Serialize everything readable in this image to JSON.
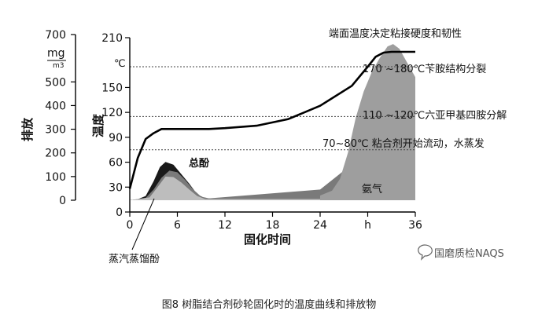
{
  "chart_data": {
    "type": "area",
    "title": "端面温度决定粘接硬度和韧性",
    "caption": "图8 树脂结合剂砂轮固化时的温度曲线和排放物",
    "xlabel": "固化时间",
    "ylabel": "温度",
    "y_unit": "℃",
    "xlim": [
      0,
      36
    ],
    "ylim": [
      0,
      210
    ],
    "x_ticks": [
      {
        "v": 0,
        "label": "0"
      },
      {
        "v": 6,
        "label": "6"
      },
      {
        "v": 12,
        "label": "12"
      },
      {
        "v": 18,
        "label": "18"
      },
      {
        "v": 24,
        "label": "24"
      },
      {
        "v": 30,
        "label": "h"
      },
      {
        "v": 36,
        "label": "36"
      }
    ],
    "y_ticks": [
      0,
      30,
      60,
      90,
      120,
      150,
      210
    ],
    "secondary_axis": {
      "label": "排放",
      "unit_top": "mg",
      "unit_bottom": "m3",
      "ylim": [
        0,
        700
      ],
      "ticks": [
        0,
        100,
        200,
        300,
        400,
        500,
        700
      ]
    },
    "reference_lines": [
      {
        "y": 175,
        "label": "170 ~180℃苄胺结构分裂"
      },
      {
        "y": 115,
        "label": "110 ~120℃六亚甲基四胺分解"
      },
      {
        "y": 75,
        "label": "70~80℃ 粘合剂开始流动，水蒸发"
      }
    ],
    "series": [
      {
        "name": "总酚",
        "role": "emission",
        "color": "#1a1a1a",
        "x": [
          0,
          1,
          2,
          3,
          3.8,
          4.5,
          5.5,
          6.5,
          7.5,
          8.5,
          9.5,
          36
        ],
        "y": [
          0,
          4,
          18,
          80,
          140,
          162,
          150,
          110,
          70,
          25,
          8,
          8
        ]
      },
      {
        "name": "",
        "role": "emission",
        "color": "#7a7a7a",
        "x": [
          0,
          2,
          3,
          4,
          5,
          6,
          7,
          8,
          9,
          10,
          24,
          27,
          29,
          30,
          31,
          32,
          33,
          34,
          35,
          36
        ],
        "y": [
          0,
          10,
          45,
          95,
          125,
          118,
          85,
          45,
          15,
          8,
          45,
          125,
          250,
          340,
          420,
          510,
          540,
          500,
          420,
          320
        ]
      },
      {
        "name": "蒸汽蒸馏酚",
        "role": "emission",
        "color": "#bdbdbd",
        "x": [
          0,
          2.5,
          3.5,
          4.5,
          5.5,
          6.5,
          7.5,
          8.5,
          9.5,
          36
        ],
        "y": [
          0,
          12,
          55,
          100,
          98,
          75,
          45,
          18,
          5,
          5
        ]
      },
      {
        "name": "氨气",
        "role": "emission",
        "color": "#9e9e9e",
        "x": [
          24,
          25.5,
          26.5,
          27.5,
          28.5,
          29.5,
          30.5,
          31.5,
          32.5,
          33.2,
          34,
          35,
          36
        ],
        "y": [
          20,
          40,
          90,
          200,
          350,
          460,
          540,
          600,
          650,
          660,
          640,
          580,
          520
        ]
      },
      {
        "name": "温度",
        "role": "temperature",
        "color": "#000000",
        "x": [
          0,
          1,
          2,
          3,
          4,
          6,
          10,
          12,
          16,
          20,
          24,
          28,
          30,
          31,
          32,
          33,
          36
        ],
        "y": [
          28,
          65,
          88,
          95,
          100,
          100,
          100,
          101,
          104,
          112,
          128,
          152,
          175,
          187,
          192,
          193,
          193
        ]
      }
    ]
  },
  "watermark": "国磨质检NAQS"
}
